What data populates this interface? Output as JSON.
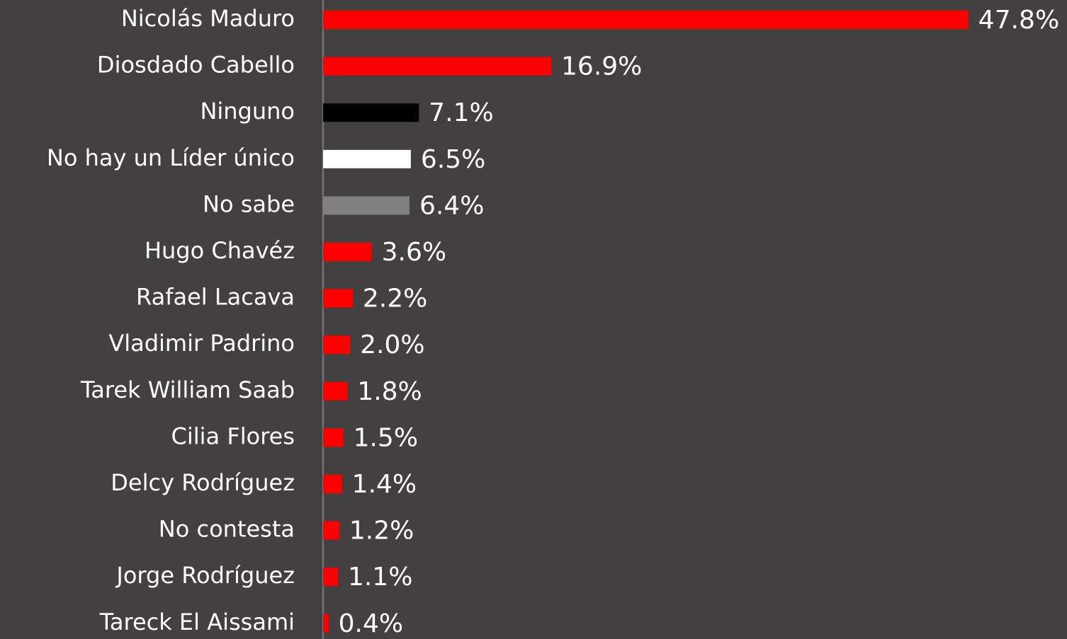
{
  "chart_data": {
    "type": "bar",
    "orientation": "horizontal",
    "categories": [
      "Nicolás Maduro",
      "Diosdado Cabello",
      "Ninguno",
      "No hay un Líder único",
      "No sabe",
      "Hugo Chavéz",
      "Rafael Lacava",
      "Vladimir Padrino",
      "Tarek William Saab",
      "Cilia Flores",
      "Delcy Rodríguez",
      "No contesta",
      "Jorge Rodríguez",
      "Tareck El Aissami"
    ],
    "values": [
      47.8,
      16.9,
      7.1,
      6.5,
      6.4,
      3.6,
      2.2,
      2.0,
      1.8,
      1.5,
      1.4,
      1.2,
      1.1,
      0.4
    ],
    "value_labels": [
      "47.8%",
      "16.9%",
      "7.1%",
      "6.5%",
      "6.4%",
      "3.6%",
      "2.2%",
      "2.0%",
      "1.8%",
      "1.5%",
      "1.4%",
      "1.2%",
      "1.1%",
      "0.4%"
    ],
    "colors": [
      "#ff0000",
      "#ff0000",
      "#000000",
      "#ffffff",
      "#808080",
      "#ff0000",
      "#ff0000",
      "#ff0000",
      "#ff0000",
      "#ff0000",
      "#ff0000",
      "#ff0000",
      "#ff0000",
      "#ff0000"
    ],
    "xlim": [
      0,
      55
    ]
  }
}
